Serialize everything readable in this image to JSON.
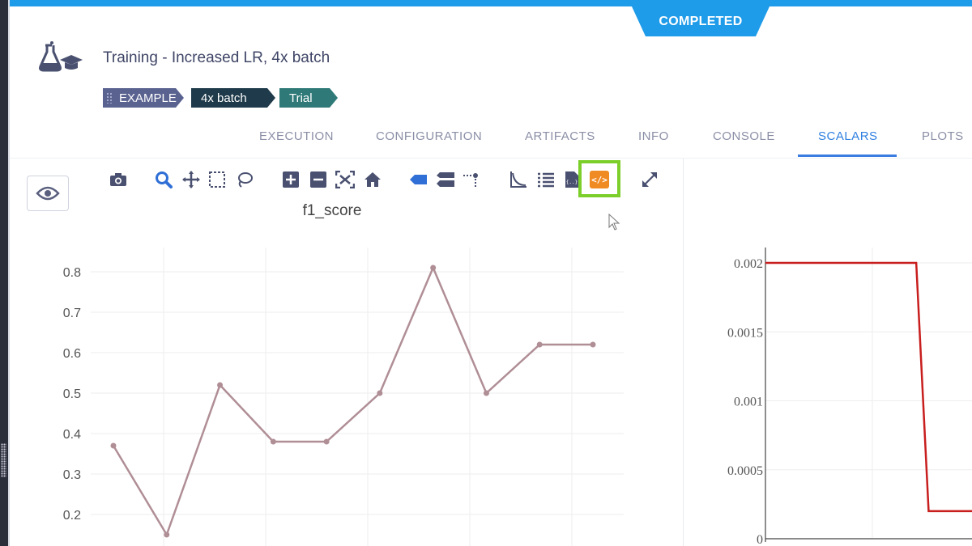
{
  "status": {
    "label": "COMPLETED"
  },
  "experiment": {
    "title": "Training - Increased LR, 4x batch",
    "tags": [
      "EXAMPLE",
      "4x batch",
      "Trial"
    ]
  },
  "tabs": [
    {
      "label": "EXECUTION",
      "active": false
    },
    {
      "label": "CONFIGURATION",
      "active": false
    },
    {
      "label": "ARTIFACTS",
      "active": false
    },
    {
      "label": "INFO",
      "active": false
    },
    {
      "label": "CONSOLE",
      "active": false
    },
    {
      "label": "SCALARS",
      "active": true
    },
    {
      "label": "PLOTS",
      "active": false
    }
  ],
  "toolbar": {
    "icons": [
      "camera-icon",
      "zoom-icon",
      "pan-icon",
      "box-select-icon",
      "lasso-select-icon",
      "zoom-in-icon",
      "zoom-out-icon",
      "autoscale-icon",
      "reset-axes-icon",
      "hover-closest-icon",
      "hover-compare-icon",
      "spike-lines-icon",
      "log-scale-icon",
      "legend-list-icon",
      "download-json-icon",
      "embed-code-icon",
      "maximize-icon"
    ],
    "highlighted": "embed-code-icon",
    "accent_color": "#7ccf2a"
  },
  "chart_data": [
    {
      "type": "line",
      "title": "f1_score",
      "yticks": [
        "0.2",
        "0.3",
        "0.4",
        "0.5",
        "0.6",
        "0.7",
        "0.8"
      ],
      "ylim": [
        0.15,
        0.85
      ],
      "series": [
        {
          "color": "#b08e96",
          "marker": true,
          "values": [
            0.37,
            0.15,
            0.52,
            0.38,
            0.38,
            0.5,
            0.81,
            0.5,
            0.62,
            0.62
          ]
        }
      ]
    },
    {
      "type": "line",
      "yticks": [
        "0",
        "0.0005",
        "0.001",
        "0.0015",
        "0.002"
      ],
      "ylim": [
        0,
        0.002
      ],
      "series": [
        {
          "color": "#c81e1e",
          "marker": false,
          "points": [
            [
              0,
              0.002
            ],
            [
              0.73,
              0.002
            ],
            [
              0.79,
              0.0002
            ],
            [
              1,
              0.0002
            ]
          ]
        }
      ]
    }
  ]
}
